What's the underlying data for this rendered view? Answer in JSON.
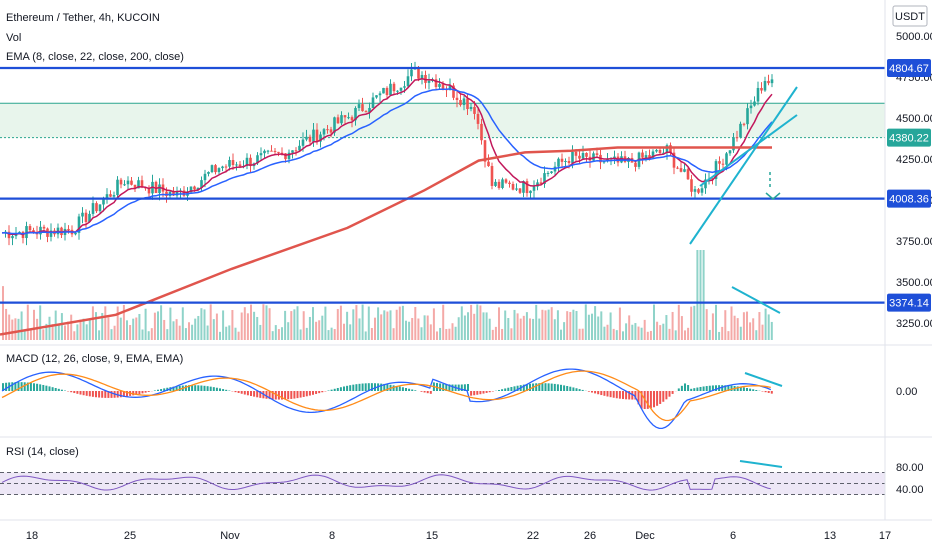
{
  "header": {
    "symbol": "Ethereum / Tether, 4h, KUCOIN",
    "vol_label": "Vol",
    "ema_label": "EMA (8, close, 22, close, 200, close)",
    "macd_label": "MACD (12, 26, close, 9, EMA, EMA)",
    "rsi_label": "RSI (14, close)",
    "currency": "USDT"
  },
  "colors": {
    "hline": "#1e4fd8",
    "channel": "#1fb3cf",
    "zone_fill": "#e8f5ec",
    "zone_line": "#2aa58e",
    "up": "#26a69a",
    "down": "#ef5350",
    "ema_fast": "#c2185b",
    "ema_mid": "#2962ff",
    "ema_slow": "#e0554d",
    "macd_line": "#2962ff",
    "signal_line": "#ff8c1a",
    "rsi_line": "#7e57c2",
    "rsi_band": "#ede7f6"
  },
  "chart_data": [
    {
      "type": "candlestick",
      "title": "Ethereum / Tether, 4h, KUCOIN",
      "x_ticks": [
        "18",
        "25",
        "Nov",
        "8",
        "15",
        "22",
        "26",
        "Dec",
        "6",
        "13",
        "17"
      ],
      "y_ticks": [
        "5000.00",
        "4750.00",
        "4500.00",
        "4250.00",
        "4000.00",
        "3750.00",
        "3500.00",
        "3250.00"
      ],
      "ylim": [
        3150,
        5120
      ],
      "price_tags": [
        {
          "value": "4804.67",
          "kind": "level"
        },
        {
          "value": "4380.22",
          "kind": "last"
        },
        {
          "value": "4008.36",
          "kind": "level"
        },
        {
          "value": "3374.14",
          "kind": "level"
        }
      ],
      "horizontal_levels": [
        4804.67,
        4008.36,
        3374.14
      ],
      "zone": [
        4380,
        4590
      ],
      "key_points": [
        {
          "x": "Oct 15",
          "close": 3800
        },
        {
          "x": "Oct 20",
          "close": 4150
        },
        {
          "x": "Oct 27",
          "close": 4250
        },
        {
          "x": "Nov 3",
          "close": 4550
        },
        {
          "x": "Nov 9",
          "close": 4800
        },
        {
          "x": "Nov 12",
          "close": 4650
        },
        {
          "x": "Nov 15",
          "close": 4550
        },
        {
          "x": "Nov 18",
          "close": 4100
        },
        {
          "x": "Nov 22",
          "close": 4250
        },
        {
          "x": "Nov 26",
          "close": 4050
        },
        {
          "x": "Nov 29",
          "close": 4400
        },
        {
          "x": "Dec 1",
          "close": 4700
        },
        {
          "x": "Dec 3",
          "close": 4550
        },
        {
          "x": "Dec 4",
          "close": 4050
        },
        {
          "x": "Dec 6",
          "close": 4150
        },
        {
          "x": "Dec 8",
          "close": 4380
        }
      ],
      "series": [
        {
          "name": "EMA 8",
          "style": "line"
        },
        {
          "name": "EMA 22",
          "style": "line"
        },
        {
          "name": "EMA 200",
          "values_key": "ema200",
          "ema200": [
            [
              0,
              3180
            ],
            [
              15,
              3300
            ],
            [
              30,
              3580
            ],
            [
              45,
              3830
            ],
            [
              55,
              4060
            ],
            [
              62,
              4240
            ],
            [
              68,
              4290
            ],
            [
              74,
              4300
            ],
            [
              80,
              4320
            ],
            [
              100,
              4320
            ]
          ]
        }
      ]
    },
    {
      "type": "bar",
      "title": "MACD (12, 26, close, 9, EMA, EMA)",
      "y_ticks": [
        "0.00"
      ]
    },
    {
      "type": "line",
      "title": "RSI (14, close)",
      "y_ticks": [
        "80.00",
        "40.00"
      ],
      "ylim": [
        30,
        82
      ],
      "bands": [
        70,
        50,
        30
      ]
    }
  ]
}
